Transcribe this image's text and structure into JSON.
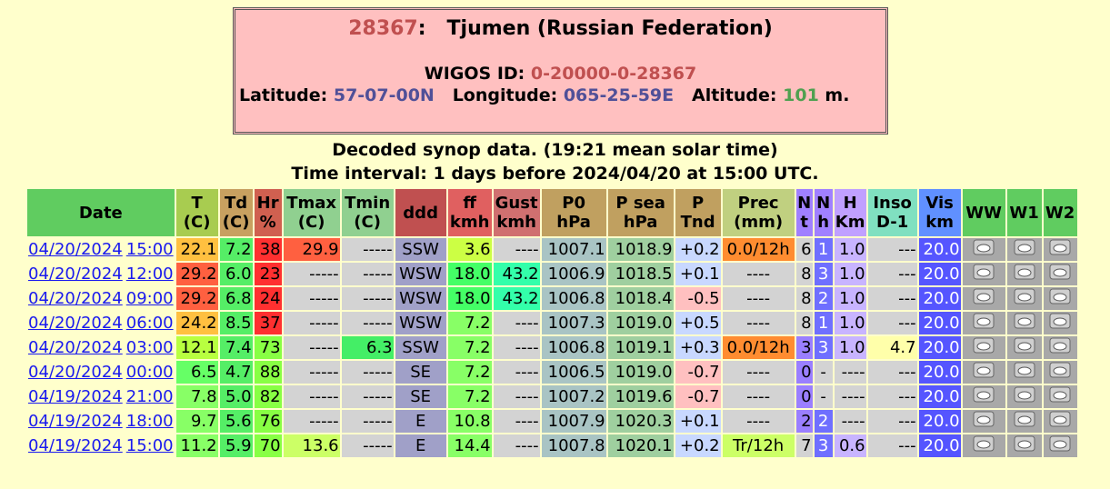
{
  "header": {
    "station_id": "28367",
    "station_sep": ":",
    "station_name": "Tjumen (Russian Federation)",
    "wigos_label": "WIGOS ID:",
    "wigos_id": "0-20000-0-28367",
    "latitude_label": "Latitude:",
    "latitude": "57-07-00N",
    "longitude_label": "Longitude:",
    "longitude": "065-25-59E",
    "altitude_label": "Altitude:",
    "altitude": "101",
    "altitude_unit": "m."
  },
  "subtitle": [
    "Decoded synop data. (19:21 mean solar time)",
    "Time interval: 1 days before 2024/04/20 at 15:00 UTC."
  ],
  "table": {
    "columns": [
      [
        "Date"
      ],
      [
        "T",
        "(C)"
      ],
      [
        "Td",
        "(C)"
      ],
      [
        "Hr",
        "%"
      ],
      [
        "Tmax",
        "(C)"
      ],
      [
        "Tmin",
        "(C)"
      ],
      [
        "ddd"
      ],
      [
        "ff",
        "kmh"
      ],
      [
        "Gust",
        "kmh"
      ],
      [
        "P0",
        "hPa"
      ],
      [
        "P sea",
        "hPa"
      ],
      [
        "P",
        "Tnd"
      ],
      [
        "Prec",
        "(mm)"
      ],
      [
        "N",
        "t"
      ],
      [
        "N",
        "h"
      ],
      [
        "H",
        "Km"
      ],
      [
        "Inso",
        "D-1"
      ],
      [
        "Vis",
        "km"
      ],
      [
        "WW"
      ],
      [
        "W1"
      ],
      [
        "W2"
      ]
    ],
    "rows": [
      [
        "04/20/2024",
        "15:00",
        "22.1",
        "7.2",
        "38",
        "29.9",
        "-----",
        "SSW",
        "3.6",
        "----",
        "1007.1",
        "1018.9",
        "+0.2",
        "0.0/12h",
        "6",
        "1",
        "1.0",
        "---",
        "20.0"
      ],
      [
        "04/20/2024",
        "12:00",
        "29.2",
        "6.0",
        "23",
        "-----",
        "-----",
        "WSW",
        "18.0",
        "43.2",
        "1006.9",
        "1018.5",
        "+0.1",
        "----",
        "8",
        "3",
        "1.0",
        "---",
        "20.0"
      ],
      [
        "04/20/2024",
        "09:00",
        "29.2",
        "6.8",
        "24",
        "-----",
        "-----",
        "WSW",
        "18.0",
        "43.2",
        "1006.8",
        "1018.4",
        "-0.5",
        "----",
        "8",
        "2",
        "1.0",
        "---",
        "20.0"
      ],
      [
        "04/20/2024",
        "06:00",
        "24.2",
        "8.5",
        "37",
        "-----",
        "-----",
        "WSW",
        "7.2",
        "----",
        "1007.3",
        "1019.0",
        "+0.5",
        "----",
        "8",
        "1",
        "1.0",
        "---",
        "20.0"
      ],
      [
        "04/20/2024",
        "03:00",
        "12.1",
        "7.4",
        "73",
        "-----",
        "6.3",
        "SSW",
        "7.2",
        "----",
        "1006.8",
        "1019.1",
        "+0.3",
        "0.0/12h",
        "3",
        "3",
        "1.0",
        "4.7",
        "20.0"
      ],
      [
        "04/20/2024",
        "00:00",
        "6.5",
        "4.7",
        "88",
        "-----",
        "-----",
        "SE",
        "7.2",
        "----",
        "1006.5",
        "1019.0",
        "-0.7",
        "----",
        "0",
        "-",
        "----",
        "---",
        "20.0"
      ],
      [
        "04/19/2024",
        "21:00",
        "7.8",
        "5.0",
        "82",
        "-----",
        "-----",
        "SE",
        "7.2",
        "----",
        "1007.2",
        "1019.6",
        "-0.7",
        "----",
        "0",
        "-",
        "----",
        "---",
        "20.0"
      ],
      [
        "04/19/2024",
        "18:00",
        "9.7",
        "5.6",
        "76",
        "-----",
        "-----",
        "E",
        "10.8",
        "----",
        "1007.9",
        "1020.3",
        "+0.1",
        "----",
        "2",
        "2",
        "----",
        "---",
        "20.0"
      ],
      [
        "04/19/2024",
        "15:00",
        "11.2",
        "5.9",
        "70",
        "13.6",
        "-----",
        "E",
        "14.4",
        "----",
        "1007.8",
        "1020.1",
        "+0.2",
        "Tr/12h",
        "7",
        "3",
        "0.6",
        "---",
        "20.0"
      ]
    ]
  }
}
